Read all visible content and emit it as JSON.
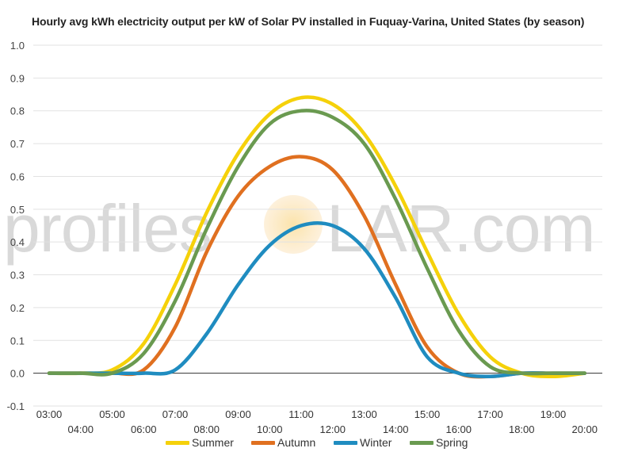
{
  "title": "Hourly avg kWh electricity output per kW of Solar PV installed in Fuquay-Varina, United States (by season)",
  "watermark": {
    "left": "profiles",
    "right": "LAR.com"
  },
  "chart_data": {
    "type": "line",
    "title": "Hourly avg kWh electricity output per kW of Solar PV installed in Fuquay-Varina, United States (by season)",
    "xlabel": "",
    "ylabel": "",
    "ylim": [
      -0.1,
      1.0
    ],
    "yticks": [
      "1.0",
      "0.9",
      "0.8",
      "0.7",
      "0.6",
      "0.5",
      "0.4",
      "0.3",
      "0.2",
      "0.1",
      "0.0",
      "-0.1"
    ],
    "x": [
      "03:00",
      "04:00",
      "05:00",
      "06:00",
      "07:00",
      "08:00",
      "09:00",
      "10:00",
      "11:00",
      "12:00",
      "13:00",
      "14:00",
      "15:00",
      "16:00",
      "17:00",
      "18:00",
      "19:00",
      "20:00"
    ],
    "legend_position": "bottom",
    "grid": true,
    "series": [
      {
        "name": "Summer",
        "color": "#f5d10a",
        "values": [
          0.0,
          0.0,
          0.01,
          0.09,
          0.27,
          0.49,
          0.67,
          0.79,
          0.84,
          0.82,
          0.73,
          0.57,
          0.37,
          0.18,
          0.05,
          0.0,
          -0.01,
          0.0
        ]
      },
      {
        "name": "Autumn",
        "color": "#e07020",
        "values": [
          0.0,
          0.0,
          0.0,
          0.01,
          0.14,
          0.37,
          0.54,
          0.63,
          0.66,
          0.62,
          0.48,
          0.27,
          0.08,
          0.0,
          -0.01,
          0.0,
          0.0,
          0.0
        ]
      },
      {
        "name": "Winter",
        "color": "#1f8cc0",
        "values": [
          0.0,
          0.0,
          0.0,
          0.0,
          0.01,
          0.12,
          0.27,
          0.39,
          0.45,
          0.45,
          0.38,
          0.23,
          0.05,
          0.0,
          -0.01,
          0.0,
          0.0,
          0.0
        ]
      },
      {
        "name": "Spring",
        "color": "#6a9a50",
        "values": [
          0.0,
          0.0,
          0.0,
          0.06,
          0.22,
          0.44,
          0.63,
          0.76,
          0.8,
          0.78,
          0.7,
          0.53,
          0.32,
          0.13,
          0.02,
          0.0,
          0.0,
          0.0
        ]
      }
    ]
  }
}
